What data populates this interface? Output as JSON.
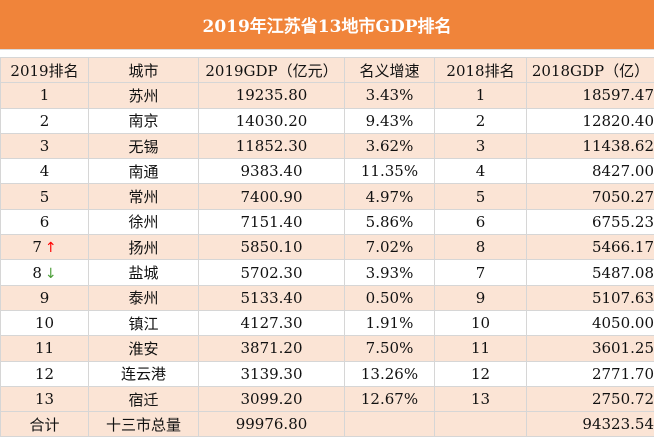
{
  "title": "2019年江苏省13地市GDP排名",
  "headers": [
    "2019排名",
    "城市",
    "2019GDP（亿元）",
    "名义增速",
    "2018排名",
    "2018GDP（亿）"
  ],
  "rows": [
    {
      "rank2019": "1",
      "city": "苏州",
      "gdp2019": "19235.80",
      "growth": "3.43%",
      "rank2018": "1",
      "gdp2018": "18597.47"
    },
    {
      "rank2019": "2",
      "city": "南京",
      "gdp2019": "14030.20",
      "growth": "9.43%",
      "rank2018": "2",
      "gdp2018": "12820.40"
    },
    {
      "rank2019": "3",
      "city": "无锡",
      "gdp2019": "11852.30",
      "growth": "3.62%",
      "rank2018": "3",
      "gdp2018": "11438.62"
    },
    {
      "rank2019": "4",
      "city": "南通",
      "gdp2019": "9383.40",
      "growth": "11.35%",
      "rank2018": "4",
      "gdp2018": "8427.00"
    },
    {
      "rank2019": "5",
      "city": "常州",
      "gdp2019": "7400.90",
      "growth": "4.97%",
      "rank2018": "5",
      "gdp2018": "7050.27"
    },
    {
      "rank2019": "6",
      "city": "徐州",
      "gdp2019": "7151.40",
      "growth": "5.86%",
      "rank2018": "6",
      "gdp2018": "6755.23"
    },
    {
      "rank2019": "7",
      "trend": "up",
      "trend_icon": "↑",
      "city": "扬州",
      "gdp2019": "5850.10",
      "growth": "7.02%",
      "rank2018": "8",
      "gdp2018": "5466.17"
    },
    {
      "rank2019": "8",
      "trend": "down",
      "trend_icon": "↓",
      "city": "盐城",
      "gdp2019": "5702.30",
      "growth": "3.93%",
      "rank2018": "7",
      "gdp2018": "5487.08"
    },
    {
      "rank2019": "9",
      "city": "泰州",
      "gdp2019": "5133.40",
      "growth": "0.50%",
      "rank2018": "9",
      "gdp2018": "5107.63"
    },
    {
      "rank2019": "10",
      "city": "镇江",
      "gdp2019": "4127.30",
      "growth": "1.91%",
      "rank2018": "10",
      "gdp2018": "4050.00"
    },
    {
      "rank2019": "11",
      "city": "淮安",
      "gdp2019": "3871.20",
      "growth": "7.50%",
      "rank2018": "11",
      "gdp2018": "3601.25"
    },
    {
      "rank2019": "12",
      "city": "连云港",
      "gdp2019": "3139.30",
      "growth": "13.26%",
      "rank2018": "12",
      "gdp2018": "2771.70"
    },
    {
      "rank2019": "13",
      "city": "宿迁",
      "gdp2019": "3099.20",
      "growth": "12.67%",
      "rank2018": "13",
      "gdp2018": "2750.72"
    }
  ],
  "total": {
    "label": "合计",
    "city": "十三市总量",
    "gdp2019": "99976.80",
    "growth": "",
    "rank2018": "",
    "gdp2018": "94323.54"
  },
  "colors": {
    "title_bg": "#f0843a",
    "band": "#fbe4d5",
    "up_arrow": "#ff0000",
    "down_arrow": "#4c9e3a"
  }
}
